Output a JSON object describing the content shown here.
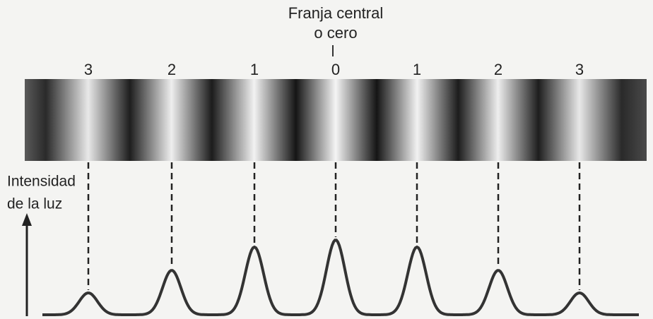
{
  "header": {
    "title_line1": "Franja central",
    "title_line2": "o cero"
  },
  "fringes": {
    "labels": [
      3,
      2,
      1,
      0,
      1,
      2,
      3
    ]
  },
  "axis": {
    "label_line1": "Intensidad",
    "label_line2": "de la luz"
  }
}
